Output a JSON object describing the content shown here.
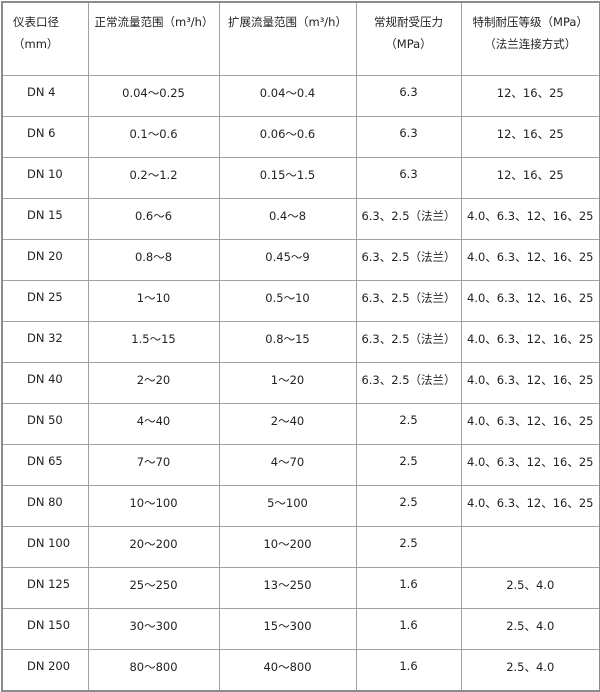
{
  "headers": [
    "仪表口径（mm）",
    "正常流量范围（m³/h）",
    "扩展流量范围（m³/h）",
    "常规耐受压力（MPa）",
    "特制耐压等级（MPa）（法兰连接方式）"
  ],
  "rows": [
    [
      "DN 4",
      "0.04～0.25",
      "0.04～0.4",
      "6.3",
      "12、16、25"
    ],
    [
      "DN 6",
      "0.1～0.6",
      "0.06～0.6",
      "6.3",
      "12、16、25"
    ],
    [
      "DN 10",
      "0.2～1.2",
      "0.15～1.5",
      "6.3",
      "12、16、25"
    ],
    [
      "DN 15",
      "0.6～6",
      "0.4～8",
      "6.3、2.5（法兰）",
      "4.0、6.3、12、16、25"
    ],
    [
      "DN 20",
      "0.8～8",
      "0.45～9",
      "6.3、2.5（法兰）",
      "4.0、6.3、12、16、25"
    ],
    [
      "DN 25",
      "1～10",
      "0.5～10",
      "6.3、2.5（法兰）",
      "4.0、6.3、12、16、25"
    ],
    [
      "DN 32",
      "1.5～15",
      "0.8～15",
      "6.3、2.5（法兰）",
      "4.0、6.3、12、16、25"
    ],
    [
      "DN 40",
      "2～20",
      "1～20",
      "6.3、2.5（法兰）",
      "4.0、6.3、12、16、25"
    ],
    [
      "DN 50",
      "4～40",
      "2～40",
      "2.5",
      "4.0、6.3、12、16、25"
    ],
    [
      "DN 65",
      "7～70",
      "4～70",
      "2.5",
      "4.0、6.3、12、16、25"
    ],
    [
      "DN 80",
      "10～100",
      "5～100",
      "2.5",
      "4.0、6.3、12、16、25"
    ],
    [
      "DN 100",
      "20～200",
      "10～200",
      "2.5",
      ""
    ],
    [
      "DN 125",
      "25～250",
      "13～250",
      "1.6",
      "2.5、4.0"
    ],
    [
      "DN 150",
      "30～300",
      "15～300",
      "1.6",
      "2.5、4.0"
    ],
    [
      "DN 200",
      "80～800",
      "40～800",
      "1.6",
      "2.5、4.0"
    ]
  ]
}
